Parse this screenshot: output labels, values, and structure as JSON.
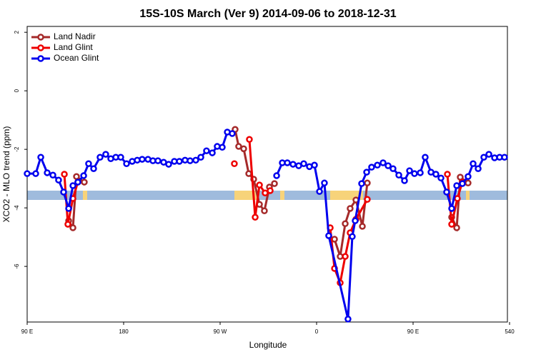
{
  "chart_data": {
    "type": "line",
    "title": "15S-10S March (Ver 9)   2014-09-06 to 2018-12-31",
    "x_label": "Longitude",
    "y_label": "XCO2 - MLO trend (ppm)",
    "xlim": [
      90,
      538
    ],
    "ylim": [
      -7.9,
      2.2
    ],
    "xticks": [
      {
        "value": 90,
        "label": "90 E"
      },
      180,
      {
        "value": 270,
        "label": "90 W"
      },
      {
        "value": 360,
        "label": "0"
      },
      {
        "value": 450,
        "label": "90 E"
      },
      540
    ],
    "yticks": [
      -6,
      -4,
      -2,
      0,
      2
    ],
    "legend": "top-left",
    "series": [
      {
        "name": "Land Nadir",
        "color": "#a52a2a",
        "x": [
          128.7,
          132.7,
          136,
          143.3,
          200,
          284,
          287.3,
          292,
          296.7,
          301.3,
          306.7,
          311.3,
          316,
          320.7,
          350,
          376.7,
          382,
          386.7,
          391.3,
          396.7,
          402.7,
          407.3,
          450,
          486,
          490.7,
          494,
          501.3
        ],
        "values": [
          -4.44,
          -4.68,
          -2.93,
          -3.12,
          null,
          -1.32,
          -1.9,
          -1.98,
          -2.83,
          -3.02,
          -3.88,
          -4.1,
          -3.29,
          -3.17,
          null,
          -5.07,
          -5.66,
          -4.54,
          -4.02,
          -3.73,
          -4.63,
          -3.15,
          null,
          -4.32,
          -4.68,
          -2.95,
          -3.15
        ]
      },
      {
        "name": "Land Glint",
        "color": "#ee0000",
        "x": [
          124.7,
          128,
          132.7,
          137.3,
          200,
          283.3,
          290,
          297.3,
          302.7,
          306.7,
          312,
          316.7,
          350,
          372.7,
          376.7,
          382,
          386.7,
          391.3,
          396.7,
          407.3,
          450,
          482,
          486,
          491.3,
          496
        ],
        "values": [
          -2.85,
          -4.56,
          -3.68,
          -3.12,
          null,
          -2.49,
          null,
          -1.66,
          -4.32,
          -3.22,
          -3.49,
          -3.41,
          null,
          -4.68,
          -6.07,
          -6.56,
          -5.66,
          -4.85,
          -4.39,
          -3.71,
          null,
          -2.85,
          -4.56,
          -3.68,
          -3.12
        ]
      },
      {
        "name": "Ocean Glint",
        "color": "#0000ee",
        "x": [
          90,
          98,
          102.7,
          108.7,
          114,
          119.3,
          124,
          128.7,
          132.7,
          137.3,
          142.7,
          147.3,
          152,
          158,
          163.3,
          168,
          172.7,
          177.3,
          182.7,
          188,
          192.7,
          197.3,
          202.7,
          207.3,
          212,
          217.3,
          222,
          227.3,
          232,
          237.3,
          242,
          247.3,
          252,
          257.3,
          262.7,
          267.3,
          272,
          276.7,
          281.3,
          300,
          322.7,
          328,
          332.7,
          338,
          343.3,
          348,
          353.3,
          358,
          362.7,
          367.3,
          371.3,
          389.3,
          393.3,
          396,
          402,
          406.7,
          411.3,
          416.7,
          422,
          426.7,
          431.3,
          436.7,
          442,
          446.7,
          451.3,
          456.7,
          461.3,
          466.7,
          471.3,
          476,
          481.3,
          486,
          490.7,
          496,
          501.3,
          506,
          510.7,
          516,
          520.7,
          526,
          530.7,
          535.3
        ],
        "values": [
          -2.83,
          -2.83,
          -2.27,
          -2.8,
          -2.88,
          -3.05,
          -3.46,
          -4.02,
          -3.24,
          -3.12,
          -2.9,
          -2.49,
          -2.66,
          -2.27,
          -2.17,
          -2.32,
          -2.27,
          -2.27,
          -2.49,
          -2.41,
          -2.37,
          -2.34,
          -2.34,
          -2.39,
          -2.39,
          -2.44,
          -2.51,
          -2.41,
          -2.41,
          -2.37,
          -2.39,
          -2.37,
          -2.27,
          -2.05,
          -2.12,
          -1.9,
          -1.93,
          -1.41,
          -1.46,
          null,
          -2.9,
          -2.46,
          -2.46,
          -2.51,
          -2.56,
          -2.49,
          -2.59,
          -2.54,
          -3.44,
          -3.15,
          -4.95,
          -7.8,
          -4.98,
          -4.44,
          -3.17,
          -2.78,
          -2.61,
          -2.54,
          -2.46,
          -2.56,
          -2.66,
          -2.88,
          -3.07,
          -2.73,
          -2.83,
          -2.8,
          -2.27,
          -2.78,
          -2.85,
          -2.98,
          -3.46,
          -4.02,
          -3.24,
          -3.17,
          -2.93,
          -2.49,
          -2.66,
          -2.27,
          -2.17,
          -2.29,
          -2.27,
          -2.27
        ]
      }
    ]
  }
}
